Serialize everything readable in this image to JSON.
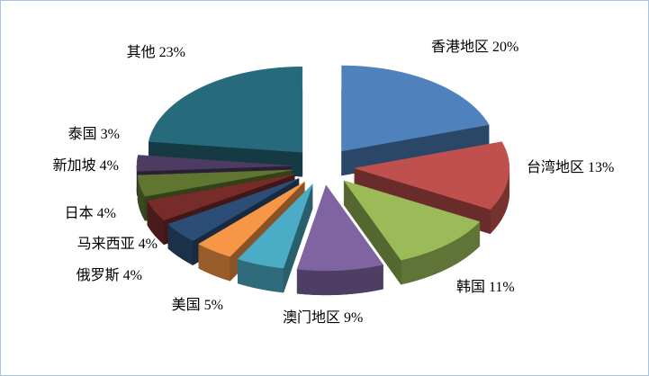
{
  "chart_data": {
    "type": "pie",
    "style": "3d-exploded",
    "title": "",
    "legend": "none",
    "grid": false,
    "start_angle_deg": 0,
    "direction": "clockwise",
    "label_format": "{label} {pct}%",
    "background_color": "#FFFFFF",
    "border_color": "#A8C4E0",
    "slices": [
      {
        "label": "香港地区",
        "pct": 20,
        "color": "#4F81BD"
      },
      {
        "label": "台湾地区",
        "pct": 13,
        "color": "#C0504D"
      },
      {
        "label": "韩国",
        "pct": 11,
        "color": "#9BBB59"
      },
      {
        "label": "澳门地区",
        "pct": 9,
        "color": "#8064A2"
      },
      {
        "label": "美国",
        "pct": 5,
        "color": "#4BACC6"
      },
      {
        "label": "俄罗斯",
        "pct": 4,
        "color": "#F79646"
      },
      {
        "label": "马来西亚",
        "pct": 4,
        "color": "#2C4D75"
      },
      {
        "label": "日本",
        "pct": 4,
        "color": "#772C2A"
      },
      {
        "label": "新加坡",
        "pct": 4,
        "color": "#5F7530"
      },
      {
        "label": "泰国",
        "pct": 3,
        "color": "#4D3B62"
      },
      {
        "label": "其他",
        "pct": 23,
        "color": "#276A7C"
      }
    ]
  }
}
